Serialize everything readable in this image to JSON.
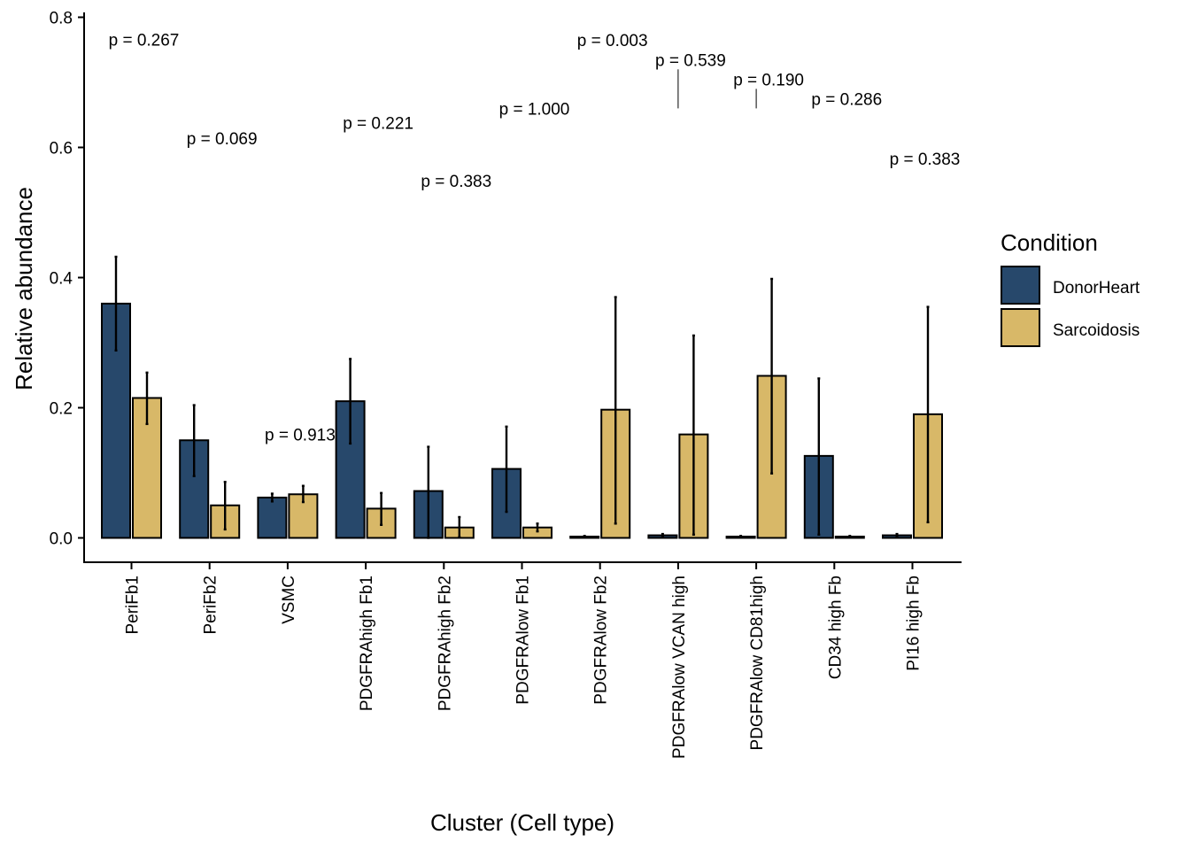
{
  "chart_data": {
    "type": "bar",
    "xlabel": "Cluster (Cell type)",
    "ylabel": "Relative abundance",
    "ylim": [
      0,
      0.8
    ],
    "yticks": [
      "0.0",
      "0.2",
      "0.4",
      "0.6",
      "0.8"
    ],
    "categories": [
      "PeriFb1",
      "PeriFb2",
      "VSMC",
      "PDGFRAhigh Fb1",
      "PDGFRAhigh Fb2",
      "PDGFRAlow Fb1",
      "PDGFRAlow Fb2",
      "PDGFRAlow VCAN high",
      "PDGFRAlow CD81high",
      "CD34 high Fb",
      "PI16 high Fb"
    ],
    "legend": {
      "title": "Condition",
      "position": "right"
    },
    "series": [
      {
        "name": "DonorHeart",
        "color": "#27486b",
        "values": [
          0.36,
          0.15,
          0.062,
          0.21,
          0.072,
          0.106,
          0.002,
          0.004,
          0.002,
          0.126,
          0.004
        ],
        "err_low": [
          0.288,
          0.095,
          0.056,
          0.145,
          0.0,
          0.04,
          0.001,
          0.002,
          0.001,
          0.005,
          0.002
        ],
        "err_high": [
          0.432,
          0.204,
          0.068,
          0.275,
          0.14,
          0.171,
          0.003,
          0.006,
          0.003,
          0.245,
          0.006
        ]
      },
      {
        "name": "Sarcoidosis",
        "color": "#d8b868",
        "values": [
          0.215,
          0.05,
          0.067,
          0.045,
          0.016,
          0.016,
          0.197,
          0.159,
          0.249,
          0.002,
          0.19
        ],
        "err_low": [
          0.175,
          0.013,
          0.055,
          0.02,
          0.001,
          0.01,
          0.022,
          0.005,
          0.099,
          0.001,
          0.024
        ],
        "err_high": [
          0.254,
          0.086,
          0.08,
          0.069,
          0.032,
          0.022,
          0.37,
          0.311,
          0.398,
          0.003,
          0.355
        ]
      }
    ],
    "pvalues": [
      {
        "category": "PeriFb1",
        "label": "p = 0.267",
        "y": 0.766
      },
      {
        "category": "PeriFb2",
        "label": "p = 0.069",
        "y": 0.614
      },
      {
        "category": "VSMC",
        "label": "p = 0.913",
        "y": 0.159
      },
      {
        "category": "PDGFRAhigh Fb1",
        "label": "p = 0.221",
        "y": 0.638
      },
      {
        "category": "PDGFRAhigh Fb2",
        "label": "p = 0.383",
        "y": 0.549
      },
      {
        "category": "PDGFRAlow Fb1",
        "label": "p = 1.000",
        "y": 0.66
      },
      {
        "category": "PDGFRAlow Fb2",
        "label": "p = 0.003",
        "y": 0.765
      },
      {
        "category": "PDGFRAlow VCAN high",
        "label": "p = 0.539",
        "y": 0.735
      },
      {
        "category": "PDGFRAlow CD81high",
        "label": "p = 0.190",
        "y": 0.705
      },
      {
        "category": "CD34 high Fb",
        "label": "p = 0.286",
        "y": 0.675
      },
      {
        "category": "PI16 high Fb",
        "label": "p = 0.383",
        "y": 0.583
      }
    ],
    "connector_lines": [
      {
        "category": "PDGFRAlow VCAN high",
        "y_from": 0.72,
        "y_to": 0.66
      },
      {
        "category": "PDGFRAlow CD81high",
        "y_from": 0.69,
        "y_to": 0.66
      }
    ]
  }
}
